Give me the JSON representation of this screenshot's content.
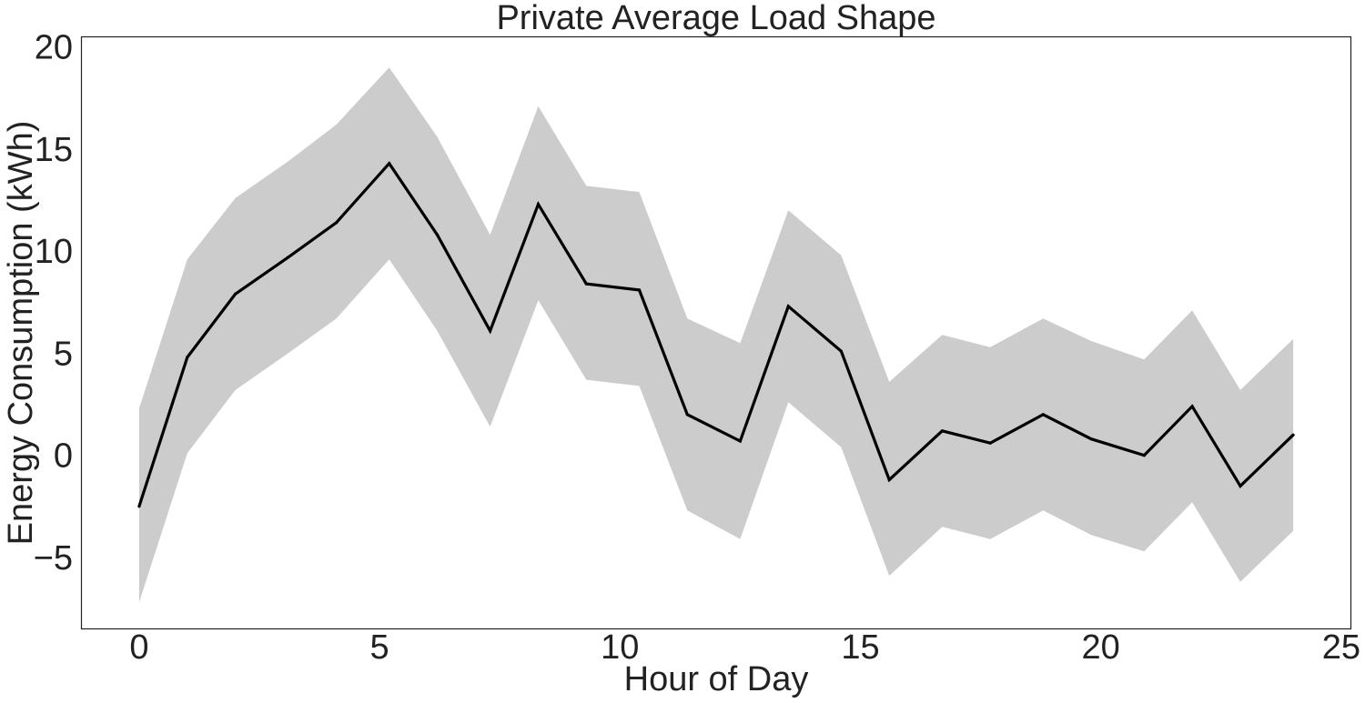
{
  "chart_data": {
    "type": "line",
    "title": "Private Average Load Shape",
    "xlabel": "Hour of Day",
    "ylabel": "Energy Consumption (kWh)",
    "xlim": [
      -1.2,
      25.2
    ],
    "ylim": [
      -8.5,
      20.5
    ],
    "xticks": [
      0,
      5,
      10,
      15,
      20,
      25
    ],
    "xtick_labels": [
      "0",
      "5",
      "10",
      "15",
      "20",
      "25"
    ],
    "yticks": [
      -5,
      0,
      5,
      10,
      15,
      20
    ],
    "ytick_labels": [
      "−5",
      "0",
      "5",
      "10",
      "15",
      "20"
    ],
    "grid": false,
    "legend": "none",
    "series": [
      {
        "x": [
          0,
          1,
          2,
          3.1,
          4.1,
          5.2,
          6.2,
          7.3,
          8.3,
          9.3,
          10.4,
          11.4,
          12.5,
          13.5,
          14.6,
          15.6,
          16.7,
          17.7,
          18.8,
          19.8,
          20.9,
          21.9,
          22.9,
          24
        ],
        "values": [
          -2.5,
          4.8,
          7.9,
          9.7,
          11.4,
          14.3,
          10.8,
          6.1,
          12.3,
          8.4,
          8.1,
          2.0,
          0.7,
          7.3,
          5.1,
          -1.2,
          1.2,
          0.6,
          2.0,
          0.8,
          0.0,
          2.4,
          -1.5,
          1.0
        ],
        "lower": [
          -7.2,
          0.1,
          3.2,
          5.0,
          6.7,
          9.6,
          6.1,
          1.4,
          7.6,
          3.7,
          3.4,
          -2.7,
          -4.1,
          2.6,
          0.4,
          -5.9,
          -3.5,
          -4.1,
          -2.7,
          -3.9,
          -4.7,
          -2.3,
          -6.2,
          -3.7
        ],
        "upper": [
          2.3,
          9.6,
          12.6,
          14.4,
          16.2,
          19.0,
          15.6,
          10.8,
          17.1,
          13.2,
          12.9,
          6.7,
          5.5,
          12.0,
          9.8,
          3.6,
          5.9,
          5.3,
          6.7,
          5.6,
          4.7,
          7.1,
          3.2,
          5.7
        ],
        "line_color": "#000000",
        "band_color": "#cccccc"
      }
    ]
  }
}
